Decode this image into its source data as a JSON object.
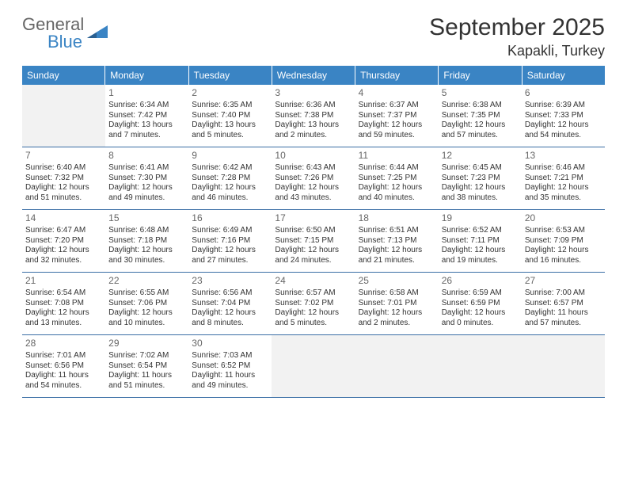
{
  "brand": {
    "word1": "General",
    "word2": "Blue",
    "color_gray": "#666666",
    "color_blue": "#3a84c4"
  },
  "header": {
    "month_title": "September 2025",
    "location": "Kapakli, Turkey"
  },
  "day_names": [
    "Sunday",
    "Monday",
    "Tuesday",
    "Wednesday",
    "Thursday",
    "Friday",
    "Saturday"
  ],
  "colors": {
    "header_bg": "#3a84c4",
    "header_fg": "#ffffff",
    "row_border": "#3a6ea5",
    "empty_bg": "#f2f2f2",
    "text": "#333333",
    "daynum": "#666666"
  },
  "weeks": [
    [
      {
        "empty": true
      },
      {
        "num": "1",
        "sunrise": "Sunrise: 6:34 AM",
        "sunset": "Sunset: 7:42 PM",
        "day1": "Daylight: 13 hours",
        "day2": "and 7 minutes."
      },
      {
        "num": "2",
        "sunrise": "Sunrise: 6:35 AM",
        "sunset": "Sunset: 7:40 PM",
        "day1": "Daylight: 13 hours",
        "day2": "and 5 minutes."
      },
      {
        "num": "3",
        "sunrise": "Sunrise: 6:36 AM",
        "sunset": "Sunset: 7:38 PM",
        "day1": "Daylight: 13 hours",
        "day2": "and 2 minutes."
      },
      {
        "num": "4",
        "sunrise": "Sunrise: 6:37 AM",
        "sunset": "Sunset: 7:37 PM",
        "day1": "Daylight: 12 hours",
        "day2": "and 59 minutes."
      },
      {
        "num": "5",
        "sunrise": "Sunrise: 6:38 AM",
        "sunset": "Sunset: 7:35 PM",
        "day1": "Daylight: 12 hours",
        "day2": "and 57 minutes."
      },
      {
        "num": "6",
        "sunrise": "Sunrise: 6:39 AM",
        "sunset": "Sunset: 7:33 PM",
        "day1": "Daylight: 12 hours",
        "day2": "and 54 minutes."
      }
    ],
    [
      {
        "num": "7",
        "sunrise": "Sunrise: 6:40 AM",
        "sunset": "Sunset: 7:32 PM",
        "day1": "Daylight: 12 hours",
        "day2": "and 51 minutes."
      },
      {
        "num": "8",
        "sunrise": "Sunrise: 6:41 AM",
        "sunset": "Sunset: 7:30 PM",
        "day1": "Daylight: 12 hours",
        "day2": "and 49 minutes."
      },
      {
        "num": "9",
        "sunrise": "Sunrise: 6:42 AM",
        "sunset": "Sunset: 7:28 PM",
        "day1": "Daylight: 12 hours",
        "day2": "and 46 minutes."
      },
      {
        "num": "10",
        "sunrise": "Sunrise: 6:43 AM",
        "sunset": "Sunset: 7:26 PM",
        "day1": "Daylight: 12 hours",
        "day2": "and 43 minutes."
      },
      {
        "num": "11",
        "sunrise": "Sunrise: 6:44 AM",
        "sunset": "Sunset: 7:25 PM",
        "day1": "Daylight: 12 hours",
        "day2": "and 40 minutes."
      },
      {
        "num": "12",
        "sunrise": "Sunrise: 6:45 AM",
        "sunset": "Sunset: 7:23 PM",
        "day1": "Daylight: 12 hours",
        "day2": "and 38 minutes."
      },
      {
        "num": "13",
        "sunrise": "Sunrise: 6:46 AM",
        "sunset": "Sunset: 7:21 PM",
        "day1": "Daylight: 12 hours",
        "day2": "and 35 minutes."
      }
    ],
    [
      {
        "num": "14",
        "sunrise": "Sunrise: 6:47 AM",
        "sunset": "Sunset: 7:20 PM",
        "day1": "Daylight: 12 hours",
        "day2": "and 32 minutes."
      },
      {
        "num": "15",
        "sunrise": "Sunrise: 6:48 AM",
        "sunset": "Sunset: 7:18 PM",
        "day1": "Daylight: 12 hours",
        "day2": "and 30 minutes."
      },
      {
        "num": "16",
        "sunrise": "Sunrise: 6:49 AM",
        "sunset": "Sunset: 7:16 PM",
        "day1": "Daylight: 12 hours",
        "day2": "and 27 minutes."
      },
      {
        "num": "17",
        "sunrise": "Sunrise: 6:50 AM",
        "sunset": "Sunset: 7:15 PM",
        "day1": "Daylight: 12 hours",
        "day2": "and 24 minutes."
      },
      {
        "num": "18",
        "sunrise": "Sunrise: 6:51 AM",
        "sunset": "Sunset: 7:13 PM",
        "day1": "Daylight: 12 hours",
        "day2": "and 21 minutes."
      },
      {
        "num": "19",
        "sunrise": "Sunrise: 6:52 AM",
        "sunset": "Sunset: 7:11 PM",
        "day1": "Daylight: 12 hours",
        "day2": "and 19 minutes."
      },
      {
        "num": "20",
        "sunrise": "Sunrise: 6:53 AM",
        "sunset": "Sunset: 7:09 PM",
        "day1": "Daylight: 12 hours",
        "day2": "and 16 minutes."
      }
    ],
    [
      {
        "num": "21",
        "sunrise": "Sunrise: 6:54 AM",
        "sunset": "Sunset: 7:08 PM",
        "day1": "Daylight: 12 hours",
        "day2": "and 13 minutes."
      },
      {
        "num": "22",
        "sunrise": "Sunrise: 6:55 AM",
        "sunset": "Sunset: 7:06 PM",
        "day1": "Daylight: 12 hours",
        "day2": "and 10 minutes."
      },
      {
        "num": "23",
        "sunrise": "Sunrise: 6:56 AM",
        "sunset": "Sunset: 7:04 PM",
        "day1": "Daylight: 12 hours",
        "day2": "and 8 minutes."
      },
      {
        "num": "24",
        "sunrise": "Sunrise: 6:57 AM",
        "sunset": "Sunset: 7:02 PM",
        "day1": "Daylight: 12 hours",
        "day2": "and 5 minutes."
      },
      {
        "num": "25",
        "sunrise": "Sunrise: 6:58 AM",
        "sunset": "Sunset: 7:01 PM",
        "day1": "Daylight: 12 hours",
        "day2": "and 2 minutes."
      },
      {
        "num": "26",
        "sunrise": "Sunrise: 6:59 AM",
        "sunset": "Sunset: 6:59 PM",
        "day1": "Daylight: 12 hours",
        "day2": "and 0 minutes."
      },
      {
        "num": "27",
        "sunrise": "Sunrise: 7:00 AM",
        "sunset": "Sunset: 6:57 PM",
        "day1": "Daylight: 11 hours",
        "day2": "and 57 minutes."
      }
    ],
    [
      {
        "num": "28",
        "sunrise": "Sunrise: 7:01 AM",
        "sunset": "Sunset: 6:56 PM",
        "day1": "Daylight: 11 hours",
        "day2": "and 54 minutes."
      },
      {
        "num": "29",
        "sunrise": "Sunrise: 7:02 AM",
        "sunset": "Sunset: 6:54 PM",
        "day1": "Daylight: 11 hours",
        "day2": "and 51 minutes."
      },
      {
        "num": "30",
        "sunrise": "Sunrise: 7:03 AM",
        "sunset": "Sunset: 6:52 PM",
        "day1": "Daylight: 11 hours",
        "day2": "and 49 minutes."
      },
      {
        "empty": true
      },
      {
        "empty": true
      },
      {
        "empty": true
      },
      {
        "empty": true
      }
    ]
  ]
}
